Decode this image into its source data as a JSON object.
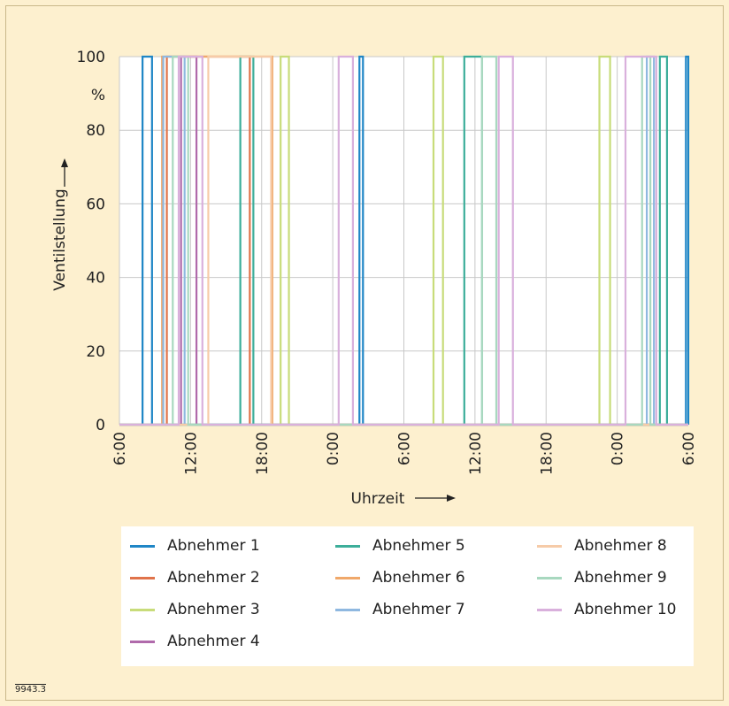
{
  "figure_id": "9943.3",
  "chart_data": {
    "type": "line",
    "title": "",
    "xlabel": "Uhrzeit",
    "ylabel": "Ventilstellung",
    "y_unit": "%",
    "ylim": [
      0,
      100
    ],
    "y_ticks": [
      0,
      20,
      40,
      60,
      80,
      100
    ],
    "xlim": [
      0,
      48
    ],
    "x_tick_values": [
      0,
      6,
      12,
      18,
      24,
      30,
      36,
      42,
      48
    ],
    "x_tick_labels": [
      "6:00",
      "12:00",
      "18:00",
      "0:00",
      "6:00",
      "12:00",
      "18:00",
      "0:00",
      "6:00"
    ],
    "x_unit_note": "hours",
    "grid": true,
    "legend_position": "bottom",
    "series": [
      {
        "name": "Abnehmer 1",
        "color": "#1f86c6",
        "on_intervals": [
          [
            1.95,
            2.75
          ],
          [
            20.25,
            20.55
          ],
          [
            47.8,
            48
          ]
        ]
      },
      {
        "name": "Abnehmer 2",
        "color": "#e0734a",
        "on_intervals": [
          [
            4.0,
            11.0
          ]
        ]
      },
      {
        "name": "Abnehmer 3",
        "color": "#c8dc7a",
        "on_intervals": [
          [
            13.6,
            14.3
          ],
          [
            26.5,
            27.3
          ],
          [
            40.5,
            41.4
          ]
        ]
      },
      {
        "name": "Abnehmer 4",
        "color": "#b06aab",
        "on_intervals": [
          [
            5.2,
            6.5
          ]
        ]
      },
      {
        "name": "Abnehmer 5",
        "color": "#3dae9a",
        "on_intervals": [
          [
            10.2,
            11.3
          ],
          [
            29.1,
            30.6
          ],
          [
            45.6,
            46.2
          ]
        ]
      },
      {
        "name": "Abnehmer 6",
        "color": "#f0a86a",
        "on_intervals": [
          [
            3.6,
            12.9
          ]
        ]
      },
      {
        "name": "Abnehmer 7",
        "color": "#8fb8e0",
        "on_intervals": [
          [
            3.7,
            5.5
          ],
          [
            44.5,
            45.1
          ]
        ]
      },
      {
        "name": "Abnehmer 8",
        "color": "#f6cba8",
        "on_intervals": [
          [
            7.5,
            12.8
          ]
        ]
      },
      {
        "name": "Abnehmer 9",
        "color": "#a8d8bf",
        "on_intervals": [
          [
            4.5,
            5.8
          ],
          [
            30.6,
            31.8
          ],
          [
            44.1,
            44.8
          ]
        ]
      },
      {
        "name": "Abnehmer 10",
        "color": "#d9b0dc",
        "on_intervals": [
          [
            5.0,
            7.0
          ],
          [
            18.5,
            19.7
          ],
          [
            32.0,
            33.2
          ],
          [
            42.7,
            45.3
          ]
        ]
      }
    ]
  }
}
